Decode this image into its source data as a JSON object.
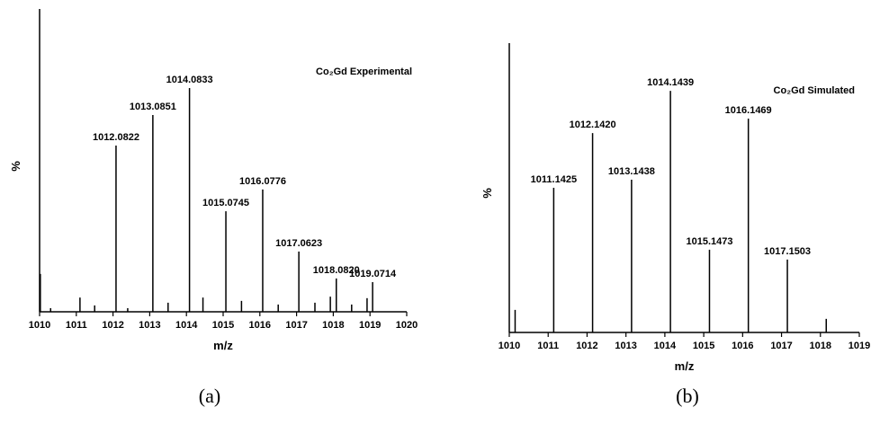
{
  "chart_data": [
    {
      "type": "stem",
      "title": "Co₂Gd Experimental",
      "x_label": "m/z",
      "y_label": "%",
      "caption": "(a)",
      "x": [
        1012.0822,
        1013.0851,
        1014.0833,
        1015.0745,
        1016.0776,
        1017.0623,
        1018.082,
        1019.0714
      ],
      "x_labels": [
        "1012.0822",
        "1013.0851",
        "1014.0833",
        "1015.0745",
        "1016.0776",
        "1017.0623",
        "1018.0820",
        "1019.0714"
      ],
      "values": [
        54.9,
        65,
        73.9,
        33.2,
        40.4,
        19.9,
        11,
        9.8
      ],
      "minor_x": [
        1010.02,
        1010.3,
        1011.1,
        1011.5,
        1012.4,
        1013.5,
        1014.45,
        1015.5,
        1016.5,
        1017.5,
        1017.92,
        1018.5,
        1018.92
      ],
      "minor_values": [
        12.5,
        1.2,
        4.7,
        2.1,
        1.2,
        3,
        4.7,
        3.6,
        2.4,
        3,
        5,
        2.4,
        4.5
      ],
      "color": "#000000",
      "xlim": [
        1010,
        1020
      ],
      "xticks": [
        1010,
        1011,
        1012,
        1013,
        1014,
        1015,
        1016,
        1017,
        1018,
        1019,
        1020
      ],
      "ylim": [
        0,
        100
      ]
    },
    {
      "type": "stem",
      "title": "Co₂Gd Simulated",
      "x_label": "m/z",
      "y_label": "%",
      "caption": "(b)",
      "x": [
        1011.1425,
        1012.142,
        1013.1438,
        1014.1439,
        1015.1473,
        1016.1469,
        1017.1503
      ],
      "x_labels": [
        "1011.1425",
        "1012.1420",
        "1013.1438",
        "1014.1439",
        "1015.1473",
        "1016.1469",
        "1017.1503"
      ],
      "values": [
        50,
        68.9,
        52.8,
        83.5,
        28.6,
        73.9,
        25.2
      ],
      "minor_x": [
        1010.15,
        1018.15
      ],
      "minor_values": [
        7.8,
        4.7
      ],
      "color": "#000000",
      "xlim": [
        1010,
        1019
      ],
      "xticks": [
        1010,
        1011,
        1012,
        1013,
        1014,
        1015,
        1016,
        1017,
        1018,
        1019
      ],
      "ylim": [
        0,
        100
      ]
    }
  ]
}
